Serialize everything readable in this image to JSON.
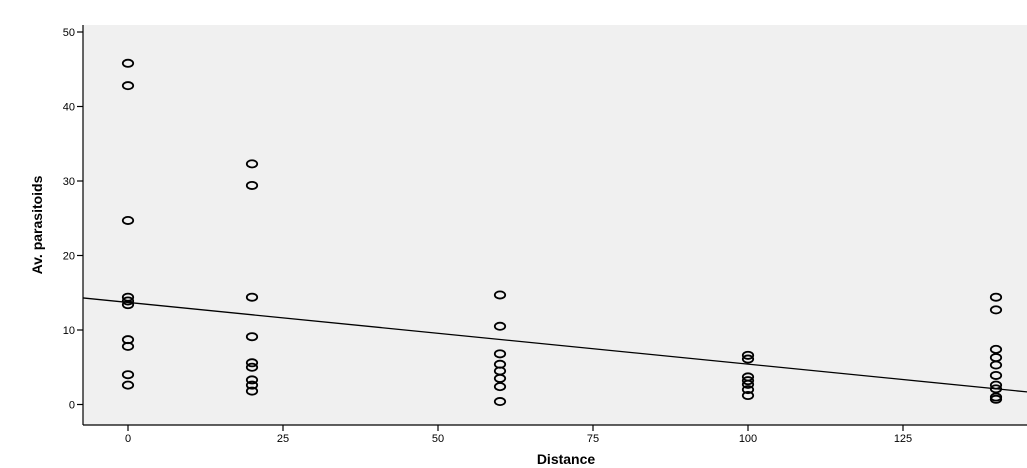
{
  "chart_data": {
    "type": "scatter",
    "title": "",
    "xlabel": "Distance",
    "ylabel": "Av. parasitoids",
    "xlim": [
      -7,
      146
    ],
    "ylim": [
      -3,
      51
    ],
    "xticks": [
      0,
      25,
      50,
      75,
      100,
      125
    ],
    "yticks": [
      0,
      10,
      20,
      30,
      40,
      50
    ],
    "grid": false,
    "legend": "none",
    "points": [
      {
        "x": 0,
        "y": 45.8
      },
      {
        "x": 0,
        "y": 42.8
      },
      {
        "x": 0,
        "y": 24.7
      },
      {
        "x": 0,
        "y": 14.4
      },
      {
        "x": 0,
        "y": 13.9
      },
      {
        "x": 0,
        "y": 13.4
      },
      {
        "x": 0,
        "y": 8.7
      },
      {
        "x": 0,
        "y": 7.8
      },
      {
        "x": 0,
        "y": 4.0
      },
      {
        "x": 0,
        "y": 2.6
      },
      {
        "x": 20,
        "y": 32.3
      },
      {
        "x": 20,
        "y": 29.4
      },
      {
        "x": 20,
        "y": 14.4
      },
      {
        "x": 20,
        "y": 9.1
      },
      {
        "x": 20,
        "y": 5.6
      },
      {
        "x": 20,
        "y": 5.0
      },
      {
        "x": 20,
        "y": 3.3
      },
      {
        "x": 20,
        "y": 2.6
      },
      {
        "x": 20,
        "y": 1.8
      },
      {
        "x": 60,
        "y": 14.7
      },
      {
        "x": 60,
        "y": 10.5
      },
      {
        "x": 60,
        "y": 6.8
      },
      {
        "x": 60,
        "y": 5.4
      },
      {
        "x": 60,
        "y": 4.5
      },
      {
        "x": 60,
        "y": 3.5
      },
      {
        "x": 60,
        "y": 2.4
      },
      {
        "x": 60,
        "y": 0.4
      },
      {
        "x": 100,
        "y": 6.6
      },
      {
        "x": 100,
        "y": 6.1
      },
      {
        "x": 100,
        "y": 3.7
      },
      {
        "x": 100,
        "y": 3.2
      },
      {
        "x": 100,
        "y": 2.7
      },
      {
        "x": 100,
        "y": 2.0
      },
      {
        "x": 100,
        "y": 1.2
      },
      {
        "x": 140,
        "y": 14.4
      },
      {
        "x": 140,
        "y": 12.7
      },
      {
        "x": 140,
        "y": 7.4
      },
      {
        "x": 140,
        "y": 6.3
      },
      {
        "x": 140,
        "y": 5.3
      },
      {
        "x": 140,
        "y": 3.9
      },
      {
        "x": 140,
        "y": 2.6
      },
      {
        "x": 140,
        "y": 2.1
      },
      {
        "x": 140,
        "y": 1.0
      },
      {
        "x": 140,
        "y": 0.7
      }
    ],
    "fit_line": {
      "intercept": 13.7,
      "slope": -0.0828
    },
    "colors": {
      "plot_background": "#f0f0f0",
      "marker": "#000000",
      "line": "#000000"
    }
  }
}
